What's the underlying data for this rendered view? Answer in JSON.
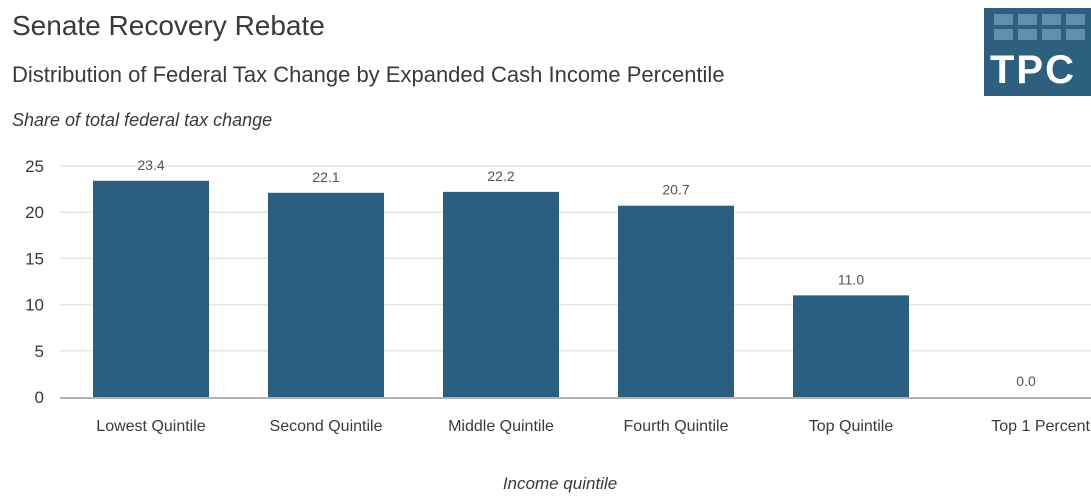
{
  "header": {
    "title": "Senate Recovery Rebate",
    "subtitle": "Distribution of Federal Tax Change by Expanded Cash Income Percentile"
  },
  "logo": {
    "text": "TPC"
  },
  "colors": {
    "bar": "#2b5f82",
    "grid": "#e3e3e3",
    "axis": "#999999",
    "text": "#3a3a3a",
    "logo_bg": "#2d5f7f"
  },
  "chart_data": {
    "type": "bar",
    "title": "",
    "ylabel": "Share of total federal tax change",
    "xlabel": "Income quintile",
    "categories": [
      "Lowest Quintile",
      "Second Quintile",
      "Middle Quintile",
      "Fourth Quintile",
      "Top Quintile",
      "Top 1 Percent"
    ],
    "values": [
      23.4,
      22.1,
      22.2,
      20.7,
      11.0,
      0.0
    ],
    "data_labels": [
      "23.4",
      "22.1",
      "22.2",
      "20.7",
      "11.0",
      "0.0"
    ],
    "yticks": [
      0,
      5,
      10,
      15,
      20,
      25
    ],
    "ylim": [
      0,
      25
    ],
    "grid": true,
    "legend": "none"
  }
}
